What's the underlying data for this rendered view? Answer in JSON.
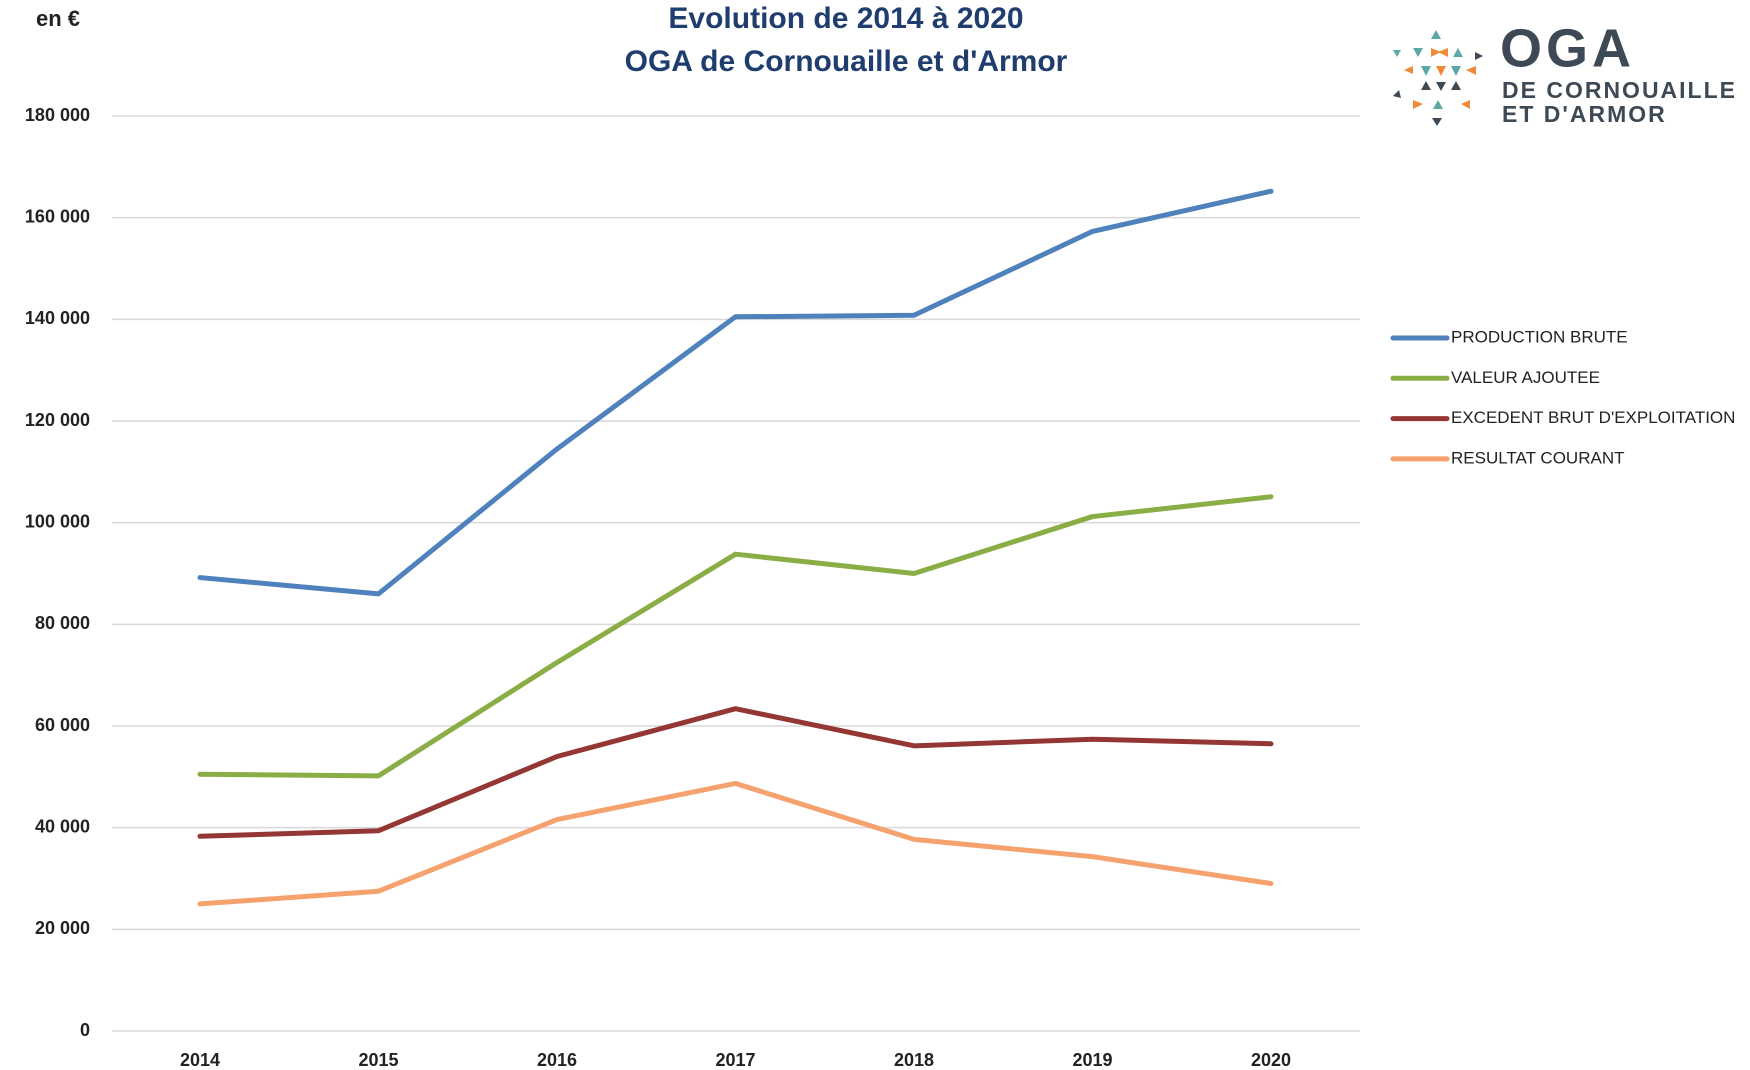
{
  "chart_data": {
    "type": "line",
    "title": "Evolution  de 2014 à 2020",
    "subtitle": "OGA de Cornouaille et d'Armor",
    "y_label": "en €",
    "logo": {
      "name": "OGA",
      "line1": "DE CORNOUAILLE",
      "line2": "ET D'ARMOR"
    },
    "categories": [
      "2014",
      "2015",
      "2016",
      "2017",
      "2018",
      "2019",
      "2020"
    ],
    "series": [
      {
        "name": "PRODUCTION BRUTE",
        "color": "#4f81bd",
        "values": [
          89200,
          86000,
          114500,
          140500,
          140800,
          157300,
          165200
        ]
      },
      {
        "name": "VALEUR AJOUTEE",
        "color": "#8aad46",
        "values": [
          50500,
          50200,
          72500,
          93800,
          90000,
          101200,
          105100
        ]
      },
      {
        "name": "EXCEDENT BRUT D'EXPLOITATION",
        "color": "#943634",
        "values": [
          38300,
          39400,
          54000,
          63400,
          56100,
          57400,
          56500
        ]
      },
      {
        "name": "RESULTAT COURANT",
        "color": "#f5a26f",
        "values": [
          25000,
          27500,
          41600,
          48700,
          37700,
          34300,
          29000
        ]
      }
    ],
    "ylim": [
      0,
      180000
    ],
    "yticks": [
      0,
      {
        "value": 20000,
        "label": "20 000"
      },
      {
        "value": 40000,
        "label": "40 000"
      },
      {
        "value": 60000,
        "label": "60 000"
      },
      {
        "value": 80000,
        "label": "80 000"
      },
      {
        "value": 100000,
        "label": "100 000"
      },
      {
        "value": 120000,
        "label": "120 000"
      },
      {
        "value": 140000,
        "label": "140 000"
      },
      {
        "value": 160000,
        "label": "160 000"
      },
      {
        "value": 180000,
        "label": "180 000"
      }
    ],
    "grid": true,
    "legend": "right"
  }
}
